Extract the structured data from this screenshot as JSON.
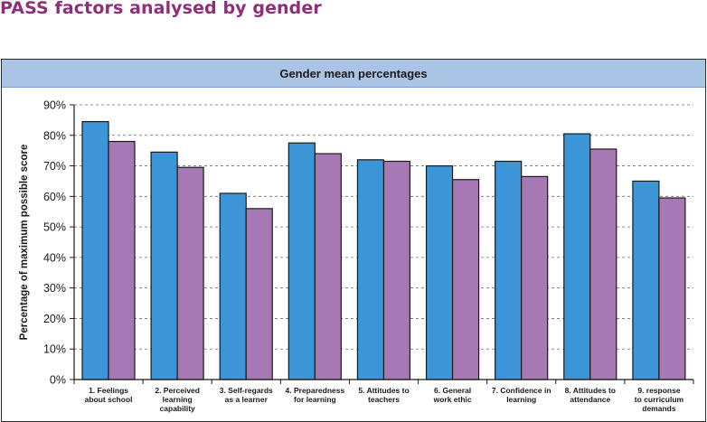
{
  "page": {
    "title": "PASS factors analysed by gender"
  },
  "chart_data": {
    "type": "bar",
    "title": "Gender mean percentages",
    "ylabel": "Percentage of maximum possible score",
    "xlabel": "",
    "ylim": [
      0,
      90
    ],
    "yticks": [
      "0%",
      "10%",
      "20%",
      "30%",
      "40%",
      "50%",
      "60%",
      "70%",
      "80%",
      "90%"
    ],
    "grid": "horizontal dashed",
    "legend": "none",
    "categories": [
      [
        "1. Feelings",
        "about school"
      ],
      [
        "2. Perceived",
        "learning",
        "capability"
      ],
      [
        "3. Self-regards",
        "as a learner"
      ],
      [
        "4. Preparedness",
        "for learning"
      ],
      [
        "5. Attitudes to",
        "teachers"
      ],
      [
        "6. General",
        "work ethic"
      ],
      [
        "7. Confidence in",
        "learning"
      ],
      [
        "8. Attitudes to",
        "attendance"
      ],
      [
        "9. response",
        "to curriculum",
        "demands"
      ]
    ],
    "series": [
      {
        "color": "#3b95d6",
        "values": [
          84.5,
          74.5,
          61,
          77.5,
          72,
          70,
          71.5,
          80.5,
          65
        ]
      },
      {
        "color": "#a779b4",
        "values": [
          78,
          69.5,
          56,
          74,
          71.5,
          65.5,
          66.5,
          75.5,
          59.5
        ]
      }
    ]
  }
}
